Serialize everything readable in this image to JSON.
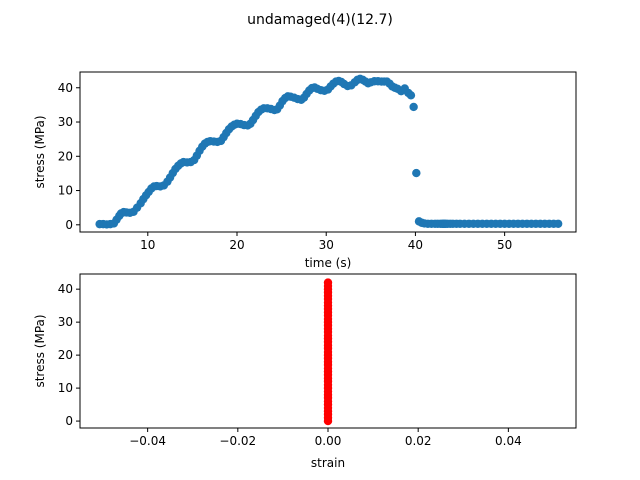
{
  "figure": {
    "suptitle": "undamaged(4)(12.7)"
  },
  "chart_data": [
    {
      "type": "scatter",
      "xlabel": "time (s)",
      "ylabel": "stress (MPa)",
      "xlim": [
        2.4,
        58.0
      ],
      "ylim": [
        -2.1,
        44.6
      ],
      "xticks": [
        10,
        20,
        30,
        40,
        50
      ],
      "yticks": [
        0,
        10,
        20,
        30,
        40
      ],
      "xtick_labels": [
        "10",
        "20",
        "30",
        "40",
        "50"
      ],
      "ytick_labels": [
        "0",
        "10",
        "20",
        "30",
        "40"
      ],
      "grid": false,
      "legend": "none",
      "color": "#1f77b4",
      "x": [
        4.6,
        5.0,
        5.4,
        5.8,
        6.2,
        6.5,
        6.8,
        7.0,
        7.3,
        7.6,
        8.0,
        8.4,
        8.8,
        9.2,
        9.5,
        9.8,
        10.1,
        10.4,
        10.7,
        11.0,
        11.4,
        11.8,
        12.2,
        12.5,
        12.8,
        13.1,
        13.4,
        13.7,
        14.0,
        14.4,
        14.8,
        15.2,
        15.5,
        15.8,
        16.1,
        16.4,
        16.7,
        17.0,
        17.4,
        17.8,
        18.2,
        18.5,
        18.8,
        19.1,
        19.4,
        19.7,
        20.0,
        20.4,
        20.8,
        21.2,
        21.5,
        21.8,
        22.1,
        22.4,
        22.7,
        23.0,
        23.4,
        23.8,
        24.2,
        24.5,
        24.8,
        25.1,
        25.4,
        25.7,
        26.0,
        26.4,
        26.8,
        27.2,
        27.5,
        27.8,
        28.1,
        28.4,
        28.7,
        29.0,
        29.4,
        29.8,
        30.2,
        30.5,
        30.8,
        31.1,
        31.4,
        31.7,
        32.0,
        32.4,
        32.8,
        33.2,
        33.5,
        33.8,
        34.1,
        34.4,
        34.7,
        35.0,
        35.4,
        35.8,
        36.2,
        36.5,
        36.8,
        37.1,
        37.4,
        37.7,
        38.0,
        38.4,
        38.8,
        39.2,
        39.5,
        39.8,
        40.1,
        40.4,
        40.7,
        41.0,
        41.4,
        41.8,
        42.2,
        42.5,
        42.8,
        43.0,
        43.1,
        43.2,
        43.3,
        43.4,
        43.6,
        43.9,
        44.2,
        44.6,
        45.0,
        45.5,
        46.0,
        46.5,
        47.0,
        47.5,
        48.0,
        48.5,
        49.0,
        49.5,
        50.0,
        50.5,
        51.0,
        51.5,
        52.0,
        52.5,
        53.0,
        53.5,
        54.0,
        54.5,
        55.0,
        55.5,
        56.0
      ],
      "y": [
        0.2,
        0.2,
        0.1,
        0.2,
        0.4,
        1.5,
        2.6,
        3.3,
        3.7,
        3.6,
        3.5,
        3.8,
        5.0,
        6.3,
        7.5,
        8.6,
        9.6,
        10.6,
        11.2,
        11.3,
        11.2,
        11.5,
        12.6,
        13.8,
        15.1,
        16.3,
        17.2,
        17.9,
        18.3,
        18.2,
        18.3,
        18.9,
        20.2,
        21.6,
        22.8,
        23.7,
        24.2,
        24.4,
        24.3,
        24.2,
        24.5,
        25.6,
        26.8,
        27.9,
        28.7,
        29.2,
        29.5,
        29.4,
        29.1,
        29.0,
        29.5,
        30.6,
        31.8,
        32.9,
        33.6,
        34.0,
        34.0,
        33.8,
        33.5,
        33.7,
        34.8,
        36.1,
        37.0,
        37.5,
        37.4,
        37.1,
        36.7,
        36.5,
        37.1,
        38.2,
        39.2,
        39.9,
        40.1,
        39.7,
        39.3,
        39.1,
        39.5,
        40.4,
        41.2,
        41.8,
        42.0,
        41.7,
        41.1,
        40.5,
        40.7,
        41.6,
        42.3,
        42.6,
        42.3,
        41.8,
        41.3,
        41.6,
        41.9,
        41.9,
        41.8,
        41.8,
        41.8,
        41.2,
        40.4,
        40.0,
        39.7,
        39.0,
        39.8,
        38.5,
        37.8,
        34.4,
        15.1,
        1.0,
        0.6,
        0.4,
        0.3,
        0.3,
        0.3,
        0.3,
        0.3,
        0.3,
        0.3,
        0.3,
        0.3,
        0.3,
        0.3,
        0.3,
        0.3,
        0.3,
        0.3,
        0.3,
        0.3,
        0.3,
        0.3,
        0.3,
        0.3,
        0.3,
        0.3,
        0.3,
        0.3,
        0.3,
        0.3,
        0.3,
        0.3,
        0.3,
        0.3,
        0.3,
        0.3,
        0.3,
        0.3,
        0.3,
        0.3
      ]
    },
    {
      "type": "scatter",
      "xlabel": "strain",
      "ylabel": "stress (MPa)",
      "xlim": [
        -0.055,
        0.055
      ],
      "ylim": [
        -2.1,
        44.6
      ],
      "xticks": [
        -0.04,
        -0.02,
        0.0,
        0.02,
        0.04
      ],
      "yticks": [
        0,
        10,
        20,
        30,
        40
      ],
      "xtick_labels": [
        "−0.04",
        "−0.02",
        "0.00",
        "0.02",
        "0.04"
      ],
      "ytick_labels": [
        "0",
        "10",
        "20",
        "30",
        "40"
      ],
      "grid": false,
      "legend": "none",
      "color": "#ff0000",
      "x": [
        0,
        0,
        0,
        0,
        0,
        0,
        0,
        0,
        0,
        0,
        0,
        0,
        0,
        0,
        0,
        0,
        0,
        0,
        0,
        0,
        0,
        0,
        0,
        0,
        0,
        0,
        0,
        0,
        0,
        0,
        0,
        0,
        0,
        0,
        0,
        0,
        0,
        0,
        0,
        0,
        0,
        0,
        0
      ],
      "y": [
        0.0,
        1.0,
        2.0,
        3.0,
        4.0,
        5.0,
        6.0,
        7.0,
        8.0,
        9.0,
        10.0,
        11.0,
        12.0,
        13.0,
        14.0,
        15.0,
        16.0,
        17.0,
        18.0,
        19.0,
        20.0,
        21.0,
        22.0,
        23.0,
        24.0,
        25.0,
        26.0,
        27.0,
        28.0,
        29.0,
        30.0,
        31.0,
        32.0,
        33.0,
        34.0,
        35.0,
        36.0,
        37.0,
        38.0,
        39.0,
        40.0,
        41.0,
        42.0
      ]
    }
  ]
}
